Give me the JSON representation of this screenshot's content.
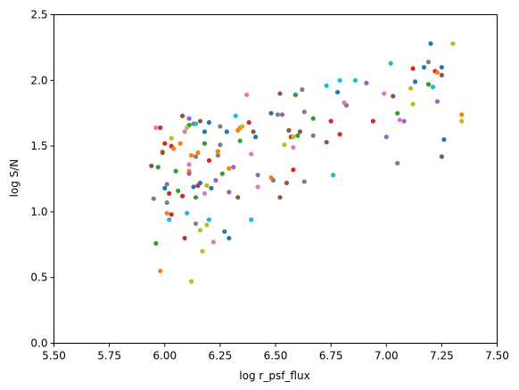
{
  "chart_data": {
    "type": "scatter",
    "xlabel": "log r_psf_flux",
    "ylabel": "log S/N",
    "xlim": [
      5.5,
      7.5
    ],
    "ylim": [
      0,
      2.5
    ],
    "xticks": [
      {
        "value": 5.5,
        "label": "5.50"
      },
      5.75,
      {
        "value": 6,
        "label": "6.00"
      },
      6.25,
      {
        "value": 6.5,
        "label": "6.50"
      },
      6.75,
      {
        "value": 7,
        "label": "7.00"
      },
      7.25,
      {
        "value": 7.5,
        "label": "7.50"
      }
    ],
    "yticks": [
      {
        "value": 0,
        "label": "0.0"
      },
      0.5,
      {
        "value": 1,
        "label": "1.0"
      },
      1.5,
      {
        "value": 2,
        "label": "2.0"
      },
      2.5
    ],
    "series": [
      {
        "x": [
          7.3,
          7.2,
          7.02,
          7.19,
          7.12,
          7.25,
          7.17,
          7.22,
          7.23,
          7.25,
          7.13,
          7.19,
          7.21,
          7.11,
          6.86,
          6.79,
          6.91,
          6.73,
          6.78,
          6.62,
          6.59,
          6.52,
          6.37,
          7.03,
          6.99,
          7.12,
          7.23,
          6.82,
          6.81,
          7.05,
          7.06,
          7.08,
          7.34,
          7.34,
          6.94,
          6.75,
          6.67,
          6.51,
          6.53,
          6.48,
          6.63,
          6.38,
          6.32,
          6.34,
          6.35,
          6.33,
          6.4,
          6.41,
          6.28,
          6.25,
          6.2,
          6.16,
          6.13,
          6.11,
          6.08,
          6.14,
          6.11,
          6.1,
          6.09,
          6.18,
          6.18,
          6.07,
          6.03,
          6.03,
          6.04,
          6.0,
          5.99,
          5.99,
          5.98,
          5.96,
          5.94,
          5.97,
          6.01,
          6.0,
          6.02,
          6.06,
          6.05,
          6.11,
          6.11,
          6.12,
          6.14,
          6.11,
          6.15,
          6.15,
          6.16,
          6.13,
          6.08,
          6.14,
          6.18,
          6.19,
          6.21,
          6.23,
          6.24,
          6.25,
          6.24,
          6.2,
          6.26,
          6.29,
          6.31,
          6.29,
          6.33,
          6.34,
          6.39,
          6.42,
          6.42,
          6.39,
          6.27,
          6.29,
          6.22,
          6.2,
          6.19,
          6.17,
          6.16,
          6.14,
          6.12,
          6.1,
          6.09,
          6.03,
          6.01,
          6.02,
          5.95,
          5.96,
          5.98,
          6.01,
          6.48,
          6.49,
          6.55,
          6.52,
          6.58,
          6.57,
          6.58,
          6.6,
          6.56,
          6.54,
          6.58,
          6.61,
          6.63,
          6.67,
          6.73,
          6.76,
          6.79,
          7.0,
          7.05,
          7.25,
          7.26
        ],
        "values": [
          2.28,
          2.28,
          2.13,
          2.14,
          2.09,
          2.1,
          2.1,
          2.07,
          2.06,
          2.04,
          1.99,
          1.97,
          1.95,
          1.94,
          2.0,
          2.0,
          1.98,
          1.96,
          1.91,
          1.93,
          1.89,
          1.9,
          1.89,
          1.88,
          1.9,
          1.82,
          1.84,
          1.81,
          1.83,
          1.75,
          1.7,
          1.69,
          1.74,
          1.69,
          1.69,
          1.69,
          1.71,
          1.74,
          1.74,
          1.75,
          1.76,
          1.68,
          1.73,
          1.64,
          1.65,
          1.62,
          1.61,
          1.57,
          1.61,
          1.65,
          1.68,
          1.69,
          1.67,
          1.71,
          1.73,
          1.67,
          1.66,
          1.64,
          1.61,
          1.61,
          1.52,
          1.52,
          1.56,
          1.5,
          1.48,
          1.52,
          1.46,
          1.45,
          1.64,
          1.64,
          1.35,
          1.34,
          1.21,
          1.18,
          1.14,
          1.16,
          1.31,
          1.31,
          1.29,
          1.43,
          1.42,
          1.36,
          1.45,
          1.2,
          1.22,
          1.19,
          1.12,
          1.11,
          1.14,
          1.2,
          1.18,
          1.24,
          1.43,
          1.51,
          1.46,
          1.39,
          1.29,
          1.33,
          1.34,
          1.15,
          1.11,
          1.54,
          1.44,
          1.28,
          1.19,
          0.94,
          0.85,
          0.8,
          0.77,
          0.94,
          0.9,
          0.7,
          0.86,
          0.91,
          0.47,
          0.99,
          0.8,
          0.98,
          0.99,
          0.94,
          1.1,
          0.76,
          0.55,
          1.07,
          1.26,
          1.24,
          1.22,
          1.11,
          1.32,
          1.57,
          1.49,
          1.58,
          1.62,
          1.51,
          1.57,
          1.61,
          1.23,
          1.58,
          1.53,
          1.28,
          1.59,
          1.57,
          1.37,
          1.42,
          1.55
        ],
        "colors": [
          "#bcbd22",
          "#1f77b4",
          "#17becf",
          "#7f7f7f",
          "#d62728",
          "#1f77b4",
          "#1f77b4",
          "#d62728",
          "#ff7f0e",
          "#8c564b",
          "#1f77b4",
          "#2ca02c",
          "#17becf",
          "#bcbd22",
          "#17becf",
          "#17becf",
          "#9467bd",
          "#17becf",
          "#1f77b4",
          "#7f7f7f",
          "#2ca02c",
          "#8c564b",
          "#e377c2",
          "#8c564b",
          "#e377c2",
          "#bcbd22",
          "#9467bd",
          "#7f7f7f",
          "#e377c2",
          "#2ca02c",
          "#e377c2",
          "#9467bd",
          "#ff7f0e",
          "#bcbd22",
          "#d62728",
          "#d62728",
          "#2ca02c",
          "#7f7f7f",
          "#9467bd",
          "#1f77b4",
          "#7f7f7f",
          "#d62728",
          "#17becf",
          "#ff7f0e",
          "#bcbd22",
          "#ff7f0e",
          "#8c564b",
          "#1f77b4",
          "#1f77b4",
          "#7f7f7f",
          "#1f77b4",
          "#8c564b",
          "#7f7f7f",
          "#9467bd",
          "#8c564b",
          "#17becf",
          "#2ca02c",
          "#bcbd22",
          "#e377c2",
          "#1f77b4",
          "#2ca02c",
          "#ff7f0e",
          "#bcbd22",
          "#d62728",
          "#ff7f0e",
          "#d62728",
          "#bcbd22",
          "#8c564b",
          "#d62728",
          "#e377c2",
          "#8c564b",
          "#2ca02c",
          "#7f7f7f",
          "#1f77b4",
          "#d62728",
          "#2ca02c",
          "#2ca02c",
          "#ff7f0e",
          "#9467bd",
          "#ff7f0e",
          "#7f7f7f",
          "#e377c2",
          "#ff7f0e",
          "#d62728",
          "#1f77b4",
          "#1f77b4",
          "#d62728",
          "#2ca02c",
          "#e377c2",
          "#bcbd22",
          "#1f77b4",
          "#9467bd",
          "#7f7f7f",
          "#7f7f7f",
          "#ff7f0e",
          "#d62728",
          "#2ca02c",
          "#ff7f0e",
          "#9467bd",
          "#9467bd",
          "#8c564b",
          "#2ca02c",
          "#e377c2",
          "#9467bd",
          "#e377c2",
          "#17becf",
          "#1f77b4",
          "#1f77b4",
          "#e377c2",
          "#17becf",
          "#bcbd22",
          "#bcbd22",
          "#bcbd22",
          "#7f7f7f",
          "#bcbd22",
          "#17becf",
          "#d62728",
          "#d62728",
          "#ff7f0e",
          "#17becf",
          "#7f7f7f",
          "#2ca02c",
          "#ff7f0e",
          "#7f7f7f",
          "#ff7f0e",
          "#7f7f7f",
          "#8c564b",
          "#8c564b",
          "#d62728",
          "#d62728",
          "#e377c2",
          "#2ca02c",
          "#8c564b",
          "#bcbd22",
          "#bcbd22",
          "#8c564b",
          "#7f7f7f",
          "#7f7f7f",
          "#8c564b",
          "#17becf",
          "#d62728",
          "#9467bd",
          "#7f7f7f",
          "#8c564b",
          "#1f77b4"
        ]
      }
    ]
  }
}
